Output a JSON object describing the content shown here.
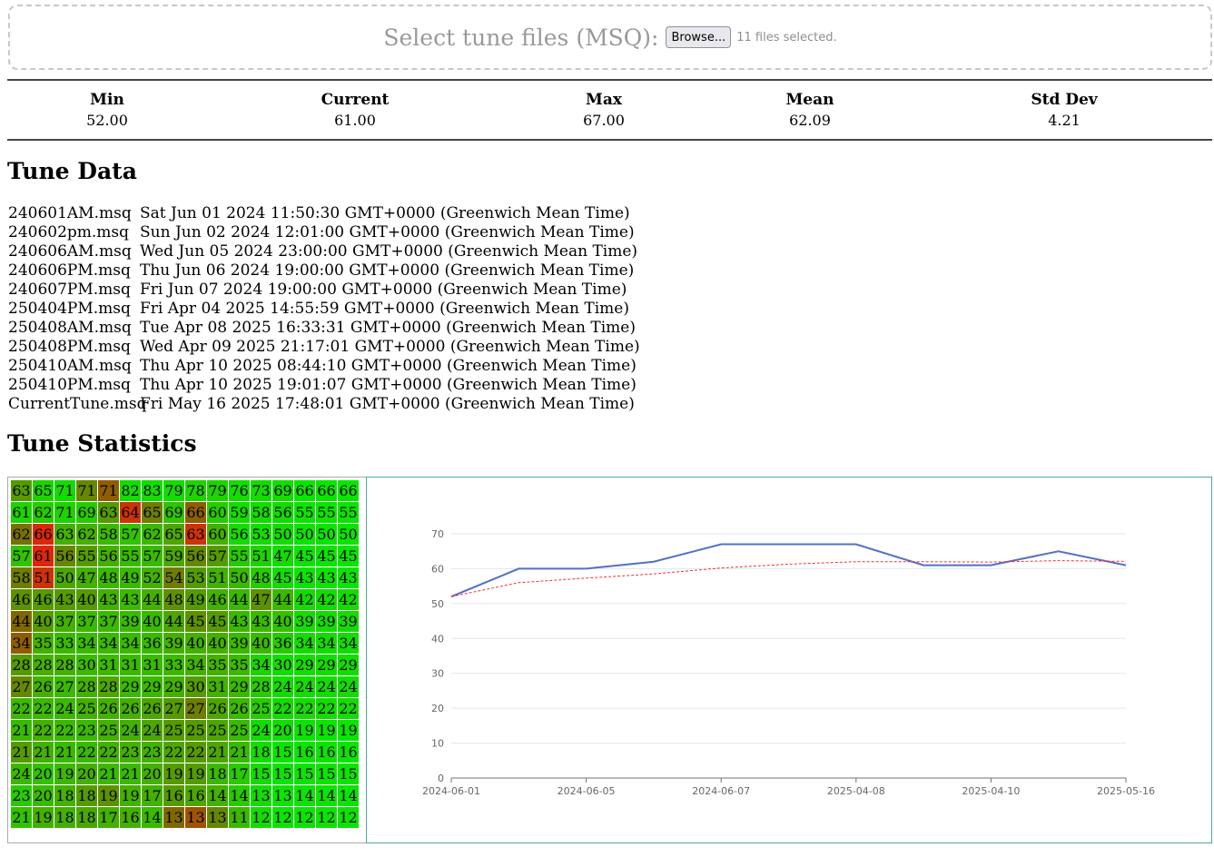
{
  "upload": {
    "label": "Select tune files (MSQ):",
    "browse_label": "Browse...",
    "files_status": "11 files selected."
  },
  "stats": [
    {
      "label": "Min",
      "value": "52.00"
    },
    {
      "label": "Current",
      "value": "61.00"
    },
    {
      "label": "Max",
      "value": "67.00"
    },
    {
      "label": "Mean",
      "value": "62.09"
    },
    {
      "label": "Std Dev",
      "value": "4.21"
    }
  ],
  "tune_data": {
    "heading": "Tune Data",
    "files": [
      {
        "name": "240601AM.msq",
        "date": "Sat Jun 01 2024 11:50:30 GMT+0000 (Greenwich Mean Time)"
      },
      {
        "name": "240602pm.msq",
        "date": "Sun Jun 02 2024 12:01:00 GMT+0000 (Greenwich Mean Time)"
      },
      {
        "name": "240606AM.msq",
        "date": "Wed Jun 05 2024 23:00:00 GMT+0000 (Greenwich Mean Time)"
      },
      {
        "name": "240606PM.msq",
        "date": "Thu Jun 06 2024 19:00:00 GMT+0000 (Greenwich Mean Time)"
      },
      {
        "name": "240607PM.msq",
        "date": "Fri Jun 07 2024 19:00:00 GMT+0000 (Greenwich Mean Time)"
      },
      {
        "name": "250404PM.msq",
        "date": "Fri Apr 04 2025 14:55:59 GMT+0000 (Greenwich Mean Time)"
      },
      {
        "name": "250408AM.msq",
        "date": "Tue Apr 08 2025 16:33:31 GMT+0000 (Greenwich Mean Time)"
      },
      {
        "name": "250408PM.msq",
        "date": "Wed Apr 09 2025 21:17:01 GMT+0000 (Greenwich Mean Time)"
      },
      {
        "name": "250410AM.msq",
        "date": "Thu Apr 10 2025 08:44:10 GMT+0000 (Greenwich Mean Time)"
      },
      {
        "name": "250410PM.msq",
        "date": "Thu Apr 10 2025 19:01:07 GMT+0000 (Greenwich Mean Time)"
      },
      {
        "name": "CurrentTune.msq",
        "date": "Fri May 16 2025 17:48:01 GMT+0000 (Greenwich Mean Time)"
      }
    ]
  },
  "tune_statistics": {
    "heading": "Tune Statistics",
    "heatmap": [
      [
        63,
        65,
        71,
        71,
        71,
        82,
        83,
        79,
        78,
        79,
        76,
        73,
        69,
        66,
        66,
        66
      ],
      [
        61,
        62,
        71,
        69,
        63,
        64,
        65,
        69,
        66,
        60,
        59,
        58,
        56,
        55,
        55,
        55
      ],
      [
        62,
        66,
        63,
        62,
        58,
        57,
        62,
        65,
        63,
        60,
        56,
        53,
        50,
        50,
        50,
        50
      ],
      [
        57,
        61,
        56,
        55,
        56,
        55,
        57,
        59,
        56,
        57,
        55,
        51,
        47,
        45,
        45,
        45
      ],
      [
        58,
        51,
        50,
        47,
        48,
        49,
        52,
        54,
        53,
        51,
        50,
        48,
        45,
        43,
        43,
        43
      ],
      [
        46,
        46,
        43,
        40,
        43,
        43,
        44,
        48,
        49,
        46,
        44,
        47,
        44,
        42,
        42,
        42
      ],
      [
        44,
        40,
        37,
        37,
        37,
        39,
        40,
        44,
        45,
        45,
        43,
        43,
        40,
        39,
        39,
        39
      ],
      [
        34,
        35,
        33,
        34,
        34,
        34,
        36,
        39,
        40,
        40,
        39,
        40,
        36,
        34,
        34,
        34
      ],
      [
        28,
        28,
        28,
        30,
        31,
        31,
        31,
        33,
        34,
        35,
        35,
        34,
        30,
        29,
        29,
        29
      ],
      [
        27,
        26,
        27,
        28,
        28,
        29,
        29,
        29,
        30,
        31,
        29,
        28,
        24,
        24,
        24,
        24
      ],
      [
        22,
        22,
        24,
        25,
        26,
        26,
        26,
        27,
        27,
        26,
        26,
        25,
        22,
        22,
        22,
        22
      ],
      [
        21,
        22,
        22,
        23,
        25,
        24,
        24,
        25,
        25,
        25,
        25,
        24,
        20,
        19,
        19,
        19
      ],
      [
        21,
        21,
        21,
        22,
        22,
        23,
        23,
        22,
        22,
        21,
        21,
        18,
        15,
        16,
        16,
        16
      ],
      [
        24,
        20,
        19,
        20,
        21,
        21,
        20,
        19,
        19,
        18,
        17,
        15,
        15,
        15,
        15,
        15
      ],
      [
        23,
        20,
        18,
        18,
        19,
        19,
        17,
        16,
        16,
        14,
        14,
        13,
        13,
        14,
        14,
        14
      ],
      [
        21,
        19,
        18,
        18,
        17,
        16,
        14,
        13,
        13,
        13,
        11,
        12,
        12,
        12,
        12,
        12
      ]
    ],
    "heatmap_variation": [
      [
        0.45,
        0.15,
        0.1,
        0.55,
        0.75,
        0.1,
        0.1,
        0.1,
        0.15,
        0.15,
        0.1,
        0.1,
        0.1,
        0.05,
        0.05,
        0.05
      ],
      [
        0.15,
        0.2,
        0.15,
        0.2,
        0.45,
        0.95,
        0.6,
        0.25,
        0.75,
        0.2,
        0.1,
        0.1,
        0.1,
        0.05,
        0.05,
        0.05
      ],
      [
        0.65,
        1.0,
        0.35,
        0.35,
        0.3,
        0.25,
        0.3,
        0.4,
        0.95,
        0.35,
        0.1,
        0.1,
        0.1,
        0.05,
        0.05,
        0.05
      ],
      [
        0.25,
        1.0,
        0.55,
        0.45,
        0.35,
        0.3,
        0.3,
        0.4,
        0.55,
        0.45,
        0.2,
        0.15,
        0.1,
        0.05,
        0.05,
        0.05
      ],
      [
        0.6,
        0.95,
        0.4,
        0.35,
        0.3,
        0.3,
        0.35,
        0.6,
        0.45,
        0.35,
        0.3,
        0.2,
        0.1,
        0.05,
        0.05,
        0.05
      ],
      [
        0.5,
        0.45,
        0.45,
        0.45,
        0.35,
        0.3,
        0.35,
        0.5,
        0.45,
        0.35,
        0.3,
        0.5,
        0.3,
        0.1,
        0.1,
        0.1
      ],
      [
        0.7,
        0.45,
        0.35,
        0.3,
        0.3,
        0.3,
        0.3,
        0.4,
        0.5,
        0.45,
        0.3,
        0.3,
        0.25,
        0.1,
        0.1,
        0.1
      ],
      [
        0.75,
        0.35,
        0.3,
        0.3,
        0.3,
        0.3,
        0.3,
        0.35,
        0.35,
        0.35,
        0.3,
        0.3,
        0.2,
        0.1,
        0.1,
        0.1
      ],
      [
        0.45,
        0.35,
        0.35,
        0.3,
        0.3,
        0.3,
        0.3,
        0.3,
        0.35,
        0.35,
        0.3,
        0.15,
        0.1,
        0.1,
        0.1,
        0.1
      ],
      [
        0.55,
        0.35,
        0.3,
        0.35,
        0.4,
        0.3,
        0.3,
        0.35,
        0.45,
        0.35,
        0.3,
        0.2,
        0.1,
        0.1,
        0.1,
        0.1
      ],
      [
        0.3,
        0.3,
        0.3,
        0.35,
        0.35,
        0.35,
        0.4,
        0.45,
        0.6,
        0.4,
        0.3,
        0.2,
        0.1,
        0.1,
        0.1,
        0.1
      ],
      [
        0.3,
        0.35,
        0.3,
        0.3,
        0.35,
        0.35,
        0.4,
        0.45,
        0.45,
        0.4,
        0.3,
        0.1,
        0.1,
        0.05,
        0.05,
        0.05
      ],
      [
        0.45,
        0.35,
        0.3,
        0.3,
        0.35,
        0.35,
        0.35,
        0.4,
        0.45,
        0.4,
        0.3,
        0.1,
        0.05,
        0.05,
        0.05,
        0.05
      ],
      [
        0.3,
        0.25,
        0.3,
        0.35,
        0.3,
        0.3,
        0.35,
        0.45,
        0.45,
        0.3,
        0.2,
        0.1,
        0.05,
        0.05,
        0.05,
        0.05
      ],
      [
        0.2,
        0.3,
        0.35,
        0.45,
        0.5,
        0.35,
        0.35,
        0.45,
        0.4,
        0.35,
        0.2,
        0.1,
        0.05,
        0.05,
        0.05,
        0.05
      ],
      [
        0.25,
        0.35,
        0.35,
        0.4,
        0.35,
        0.35,
        0.3,
        0.7,
        0.8,
        0.55,
        0.3,
        0.1,
        0.05,
        0.05,
        0.05,
        0.05
      ]
    ]
  },
  "chart_data": {
    "type": "line",
    "x": [
      "2024-06-01",
      "2024-06-02",
      "2024-06-05",
      "2024-06-06",
      "2024-06-07",
      "2025-04-04",
      "2025-04-08",
      "2025-04-09",
      "2025-04-10",
      "2025-04-10",
      "2025-05-16"
    ],
    "x_tick_labels": [
      "2024-06-01",
      "2024-06-05",
      "2024-06-07",
      "2025-04-08",
      "2025-04-10",
      "2025-05-16"
    ],
    "series": [
      {
        "values": [
          52,
          60,
          60,
          62,
          67,
          67,
          67,
          61,
          61,
          65,
          61
        ],
        "color": "#5470c6",
        "style": "solid"
      },
      {
        "values": [
          52,
          56,
          57.3,
          58.5,
          60.2,
          61.3,
          62,
          62,
          61.9,
          62.3,
          62.1
        ],
        "color": "#ee3333",
        "style": "dashed"
      }
    ],
    "ylim": [
      0,
      70
    ],
    "yticks": [
      0,
      10,
      20,
      30,
      40,
      50,
      60,
      70
    ],
    "grid": true,
    "title": "",
    "xlabel": "",
    "ylabel": ""
  }
}
